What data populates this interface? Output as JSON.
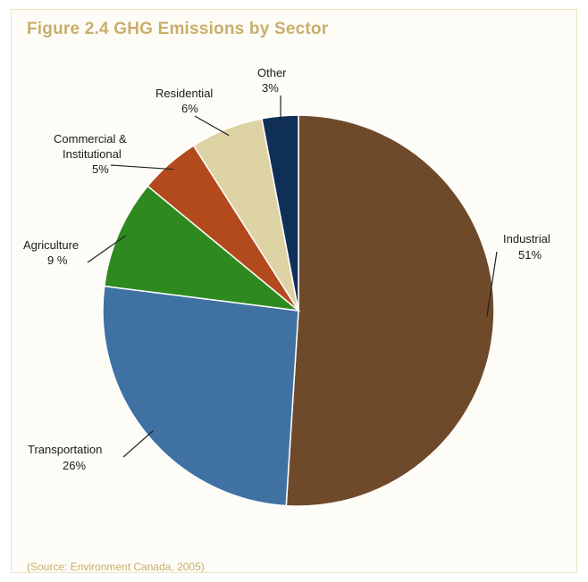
{
  "figure": {
    "title": "Figure 2.4  GHG Emissions by Sector",
    "source": "(Source: Environment Canada, 2005)"
  },
  "chart_data": {
    "type": "pie",
    "title": "Figure 2.4  GHG Emissions by Sector",
    "slices": [
      {
        "label": "Industrial",
        "value_label": "51%",
        "value": 51,
        "color": "#6f4a2a"
      },
      {
        "label": "Transportation",
        "value_label": "26%",
        "value": 26,
        "color": "#3f72a2"
      },
      {
        "label": "Agriculture",
        "value_label": "9 %",
        "value": 9,
        "color": "#2e8a1e"
      },
      {
        "label": "Commercial & Institutional",
        "value_label": "5%",
        "value": 5,
        "color": "#b24a1d"
      },
      {
        "label": "Residential",
        "value_label": "6%",
        "value": 6,
        "color": "#ded3a5"
      },
      {
        "label": "Other",
        "value_label": "3%",
        "value": 3,
        "color": "#0f2f57"
      }
    ],
    "start": "top, clockwise",
    "legend": "none (labels beside slices)"
  }
}
